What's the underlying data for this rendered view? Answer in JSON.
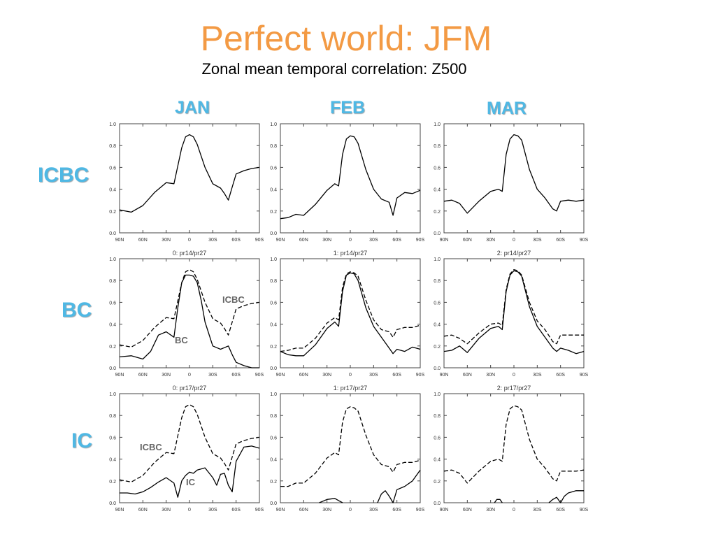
{
  "title": "Perfect world: JFM",
  "subtitle": "Zonal mean temporal correlation: Z500",
  "columns": [
    "JAN",
    "FEB",
    "MAR"
  ],
  "rows": [
    "ICBC",
    "BC",
    "IC"
  ],
  "colors": {
    "title": "#f39a44",
    "labels": "#4fb8e4",
    "curves": "#000000",
    "annotations": "#666666"
  },
  "chart_data": {
    "type": "line",
    "layout": "small-multiples 3x3",
    "x_ticks": [
      "90N",
      "60N",
      "30N",
      "0",
      "30S",
      "60S",
      "90S"
    ],
    "y_ticks": [
      "0.0",
      "0.2",
      "0.4",
      "0.6",
      "0.8",
      "1.0"
    ],
    "xlim": [
      -90,
      90
    ],
    "ylim": [
      0,
      1
    ],
    "panels": [
      {
        "column": "JAN",
        "row": "ICBC",
        "title": "",
        "series": [
          {
            "style": "solid",
            "x": [
              -90,
              -75,
              -60,
              -45,
              -30,
              -20,
              -10,
              -5,
              0,
              5,
              10,
              20,
              30,
              40,
              45,
              50,
              55,
              60,
              70,
              80,
              90
            ],
            "y": [
              0.21,
              0.19,
              0.25,
              0.37,
              0.46,
              0.45,
              0.78,
              0.88,
              0.9,
              0.88,
              0.81,
              0.6,
              0.45,
              0.41,
              0.36,
              0.3,
              0.42,
              0.54,
              0.57,
              0.59,
              0.6
            ]
          }
        ]
      },
      {
        "column": "FEB",
        "row": "ICBC",
        "title": "",
        "series": [
          {
            "style": "solid",
            "x": [
              -90,
              -80,
              -70,
              -60,
              -45,
              -30,
              -20,
              -15,
              -10,
              -5,
              0,
              5,
              10,
              20,
              30,
              40,
              50,
              55,
              60,
              70,
              80,
              90
            ],
            "y": [
              0.13,
              0.14,
              0.17,
              0.16,
              0.26,
              0.39,
              0.45,
              0.43,
              0.72,
              0.86,
              0.89,
              0.88,
              0.82,
              0.58,
              0.4,
              0.31,
              0.28,
              0.16,
              0.32,
              0.37,
              0.36,
              0.39
            ]
          }
        ]
      },
      {
        "column": "MAR",
        "row": "ICBC",
        "title": "",
        "series": [
          {
            "style": "solid",
            "x": [
              -90,
              -80,
              -70,
              -60,
              -45,
              -30,
              -20,
              -15,
              -10,
              -5,
              0,
              5,
              10,
              20,
              30,
              40,
              50,
              55,
              60,
              70,
              80,
              90
            ],
            "y": [
              0.29,
              0.3,
              0.27,
              0.18,
              0.29,
              0.38,
              0.4,
              0.38,
              0.72,
              0.86,
              0.9,
              0.89,
              0.85,
              0.58,
              0.4,
              0.32,
              0.22,
              0.2,
              0.29,
              0.3,
              0.29,
              0.3
            ]
          }
        ]
      },
      {
        "column": "JAN",
        "row": "BC",
        "title": "0: pr14/pr27",
        "annotations": [
          "ICBC",
          "BC"
        ],
        "series": [
          {
            "style": "dashed",
            "x": [
              -90,
              -75,
              -60,
              -45,
              -30,
              -20,
              -10,
              -5,
              0,
              5,
              10,
              20,
              30,
              40,
              45,
              50,
              55,
              60,
              70,
              80,
              90
            ],
            "y": [
              0.21,
              0.19,
              0.25,
              0.37,
              0.46,
              0.45,
              0.78,
              0.88,
              0.9,
              0.88,
              0.81,
              0.6,
              0.45,
              0.41,
              0.36,
              0.3,
              0.42,
              0.54,
              0.57,
              0.59,
              0.6
            ]
          },
          {
            "style": "solid",
            "x": [
              -90,
              -75,
              -60,
              -50,
              -40,
              -30,
              -20,
              -15,
              -10,
              -5,
              0,
              5,
              10,
              15,
              20,
              30,
              40,
              50,
              55,
              60,
              70,
              80,
              90
            ],
            "y": [
              0.1,
              0.11,
              0.08,
              0.15,
              0.3,
              0.33,
              0.28,
              0.55,
              0.78,
              0.85,
              0.85,
              0.84,
              0.78,
              0.62,
              0.42,
              0.2,
              0.17,
              0.2,
              0.12,
              0.05,
              0.02,
              0.0,
              0.0
            ]
          }
        ]
      },
      {
        "column": "FEB",
        "row": "BC",
        "title": "1: pr14/pr27",
        "series": [
          {
            "style": "dashed",
            "x": [
              -90,
              -80,
              -70,
              -60,
              -45,
              -30,
              -20,
              -15,
              -10,
              -5,
              0,
              5,
              10,
              20,
              30,
              40,
              50,
              55,
              60,
              70,
              80,
              90
            ],
            "y": [
              0.15,
              0.16,
              0.18,
              0.18,
              0.27,
              0.41,
              0.46,
              0.44,
              0.74,
              0.86,
              0.88,
              0.87,
              0.84,
              0.62,
              0.44,
              0.35,
              0.33,
              0.28,
              0.35,
              0.37,
              0.37,
              0.39
            ]
          },
          {
            "style": "solid",
            "x": [
              -90,
              -80,
              -70,
              -60,
              -45,
              -30,
              -20,
              -15,
              -10,
              -5,
              0,
              5,
              10,
              20,
              30,
              40,
              50,
              55,
              60,
              70,
              80,
              90
            ],
            "y": [
              0.15,
              0.12,
              0.11,
              0.11,
              0.21,
              0.36,
              0.42,
              0.38,
              0.7,
              0.85,
              0.87,
              0.86,
              0.8,
              0.55,
              0.38,
              0.28,
              0.18,
              0.13,
              0.17,
              0.15,
              0.19,
              0.17
            ]
          }
        ]
      },
      {
        "column": "MAR",
        "row": "BC",
        "title": "2: pr14/pr27",
        "series": [
          {
            "style": "dashed",
            "x": [
              -90,
              -80,
              -70,
              -60,
              -45,
              -30,
              -20,
              -15,
              -10,
              -5,
              0,
              5,
              10,
              20,
              30,
              40,
              50,
              55,
              60,
              70,
              80,
              90
            ],
            "y": [
              0.29,
              0.3,
              0.27,
              0.22,
              0.32,
              0.4,
              0.41,
              0.39,
              0.72,
              0.86,
              0.9,
              0.89,
              0.85,
              0.6,
              0.43,
              0.35,
              0.24,
              0.22,
              0.3,
              0.3,
              0.3,
              0.3
            ]
          },
          {
            "style": "solid",
            "x": [
              -90,
              -80,
              -70,
              -60,
              -45,
              -30,
              -20,
              -15,
              -10,
              -5,
              0,
              5,
              10,
              20,
              30,
              40,
              50,
              55,
              60,
              70,
              80,
              90
            ],
            "y": [
              0.15,
              0.16,
              0.2,
              0.14,
              0.27,
              0.36,
              0.38,
              0.35,
              0.7,
              0.85,
              0.89,
              0.88,
              0.84,
              0.56,
              0.38,
              0.28,
              0.18,
              0.15,
              0.18,
              0.16,
              0.13,
              0.15
            ]
          }
        ]
      },
      {
        "column": "JAN",
        "row": "IC",
        "title": "0: pr17/pr27",
        "annotations": [
          "ICBC",
          "IC"
        ],
        "series": [
          {
            "style": "dashed",
            "x": [
              -90,
              -75,
              -60,
              -45,
              -30,
              -20,
              -10,
              -5,
              0,
              5,
              10,
              20,
              30,
              40,
              45,
              50,
              55,
              60,
              70,
              80,
              90
            ],
            "y": [
              0.21,
              0.19,
              0.25,
              0.37,
              0.46,
              0.45,
              0.78,
              0.88,
              0.9,
              0.88,
              0.81,
              0.6,
              0.45,
              0.41,
              0.36,
              0.3,
              0.42,
              0.54,
              0.57,
              0.59,
              0.6
            ]
          },
          {
            "style": "solid",
            "x": [
              -90,
              -80,
              -70,
              -60,
              -50,
              -40,
              -30,
              -20,
              -15,
              -10,
              -5,
              0,
              5,
              10,
              20,
              30,
              35,
              40,
              45,
              50,
              55,
              60,
              70,
              80,
              90
            ],
            "y": [
              0.09,
              0.09,
              0.08,
              0.1,
              0.14,
              0.19,
              0.23,
              0.18,
              0.05,
              0.2,
              0.25,
              0.28,
              0.27,
              0.3,
              0.32,
              0.23,
              0.16,
              0.26,
              0.27,
              0.16,
              0.1,
              0.38,
              0.51,
              0.52,
              0.5
            ]
          }
        ]
      },
      {
        "column": "FEB",
        "row": "IC",
        "title": "1: pr17/pr27",
        "series": [
          {
            "style": "dashed",
            "x": [
              -90,
              -80,
              -70,
              -60,
              -45,
              -30,
              -20,
              -15,
              -10,
              -5,
              0,
              5,
              10,
              20,
              30,
              40,
              50,
              55,
              60,
              70,
              80,
              90
            ],
            "y": [
              0.15,
              0.15,
              0.18,
              0.18,
              0.27,
              0.41,
              0.46,
              0.44,
              0.74,
              0.86,
              0.88,
              0.87,
              0.84,
              0.62,
              0.44,
              0.35,
              0.33,
              0.28,
              0.35,
              0.37,
              0.37,
              0.39
            ]
          },
          {
            "style": "solid",
            "x": [
              -40,
              -30,
              -20,
              -15,
              -10
            ],
            "y": [
              0.0,
              0.03,
              0.04,
              0.02,
              0.0
            ]
          },
          {
            "style": "solid",
            "x": [
              35,
              40,
              45,
              50,
              55,
              60,
              70,
              80,
              90
            ],
            "y": [
              0.0,
              0.08,
              0.11,
              0.06,
              0.0,
              0.12,
              0.15,
              0.2,
              0.3
            ]
          }
        ]
      },
      {
        "column": "MAR",
        "row": "IC",
        "title": "2: pr17/pr27",
        "series": [
          {
            "style": "dashed",
            "x": [
              -90,
              -80,
              -70,
              -60,
              -45,
              -30,
              -20,
              -15,
              -10,
              -5,
              0,
              5,
              10,
              20,
              30,
              40,
              50,
              55,
              60,
              70,
              80,
              90
            ],
            "y": [
              0.29,
              0.3,
              0.27,
              0.18,
              0.29,
              0.38,
              0.4,
              0.38,
              0.72,
              0.86,
              0.89,
              0.88,
              0.85,
              0.58,
              0.4,
              0.32,
              0.22,
              0.2,
              0.29,
              0.29,
              0.29,
              0.3
            ]
          },
          {
            "style": "solid",
            "x": [
              -25,
              -22,
              -18,
              -15
            ],
            "y": [
              0.0,
              0.03,
              0.03,
              0.0
            ]
          },
          {
            "style": "solid",
            "x": [
              45,
              50,
              55,
              60,
              65,
              70,
              80,
              90
            ],
            "y": [
              0.0,
              0.03,
              0.05,
              0.0,
              0.06,
              0.09,
              0.11,
              0.11
            ]
          }
        ]
      }
    ]
  }
}
